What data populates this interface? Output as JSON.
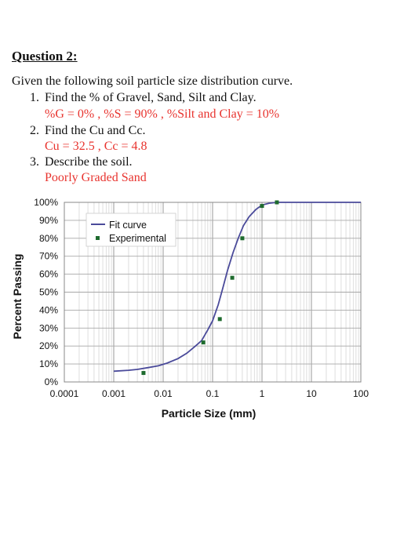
{
  "question": {
    "title": "Question 2:",
    "intro": "Given the following soil particle size distribution curve.",
    "items": [
      {
        "number": "1.",
        "text": "Find the % of Gravel, Sand, Silt and Clay.",
        "answer": "%G = 0% , %S = 90% , %Silt and Clay = 10%"
      },
      {
        "number": "2.",
        "text": "Find the Cu and Cc.",
        "answer": "Cu = 32.5 , Cc = 4.8"
      },
      {
        "number": "3.",
        "text": "Describe the soil.",
        "answer": "Poorly Graded Sand"
      }
    ]
  },
  "colors": {
    "text": "#111111",
    "answer": "#e8332e",
    "fit_curve": "#4a4a9a",
    "experimental": "#1e6b2e",
    "grid": "#c8c8c8"
  },
  "chart_data": {
    "type": "scatter",
    "ylabel": "Percent Passing",
    "xlabel": "Particle Size (mm)",
    "xscale": "log",
    "xlim": [
      0.0001,
      100
    ],
    "ylim": [
      0,
      100
    ],
    "xticks": [
      "0.0001",
      "0.001",
      "0.01",
      "0.1",
      "1",
      "10",
      "100"
    ],
    "yticks": [
      "0%",
      "10%",
      "20%",
      "30%",
      "40%",
      "50%",
      "60%",
      "70%",
      "80%",
      "90%",
      "100%"
    ],
    "grid": true,
    "legend_position": "top-left",
    "series": [
      {
        "name": "Fit curve",
        "style": "line",
        "points": [
          [
            0.001,
            6
          ],
          [
            0.002,
            6.5
          ],
          [
            0.003,
            7
          ],
          [
            0.005,
            8
          ],
          [
            0.008,
            9
          ],
          [
            0.012,
            10.5
          ],
          [
            0.02,
            13
          ],
          [
            0.03,
            16
          ],
          [
            0.045,
            20
          ],
          [
            0.06,
            23
          ],
          [
            0.08,
            29
          ],
          [
            0.1,
            34
          ],
          [
            0.13,
            43
          ],
          [
            0.16,
            52
          ],
          [
            0.2,
            62
          ],
          [
            0.26,
            72
          ],
          [
            0.33,
            80
          ],
          [
            0.42,
            87
          ],
          [
            0.55,
            92
          ],
          [
            0.75,
            96
          ],
          [
            1.0,
            98.5
          ],
          [
            1.4,
            99.5
          ],
          [
            2.0,
            100
          ],
          [
            5,
            100
          ],
          [
            100,
            100
          ]
        ]
      },
      {
        "name": "Experimental",
        "style": "markers",
        "points": [
          [
            0.004,
            5
          ],
          [
            0.065,
            22
          ],
          [
            0.14,
            35
          ],
          [
            0.25,
            58
          ],
          [
            0.4,
            80
          ],
          [
            1.0,
            98
          ],
          [
            2.0,
            100
          ]
        ]
      }
    ]
  }
}
